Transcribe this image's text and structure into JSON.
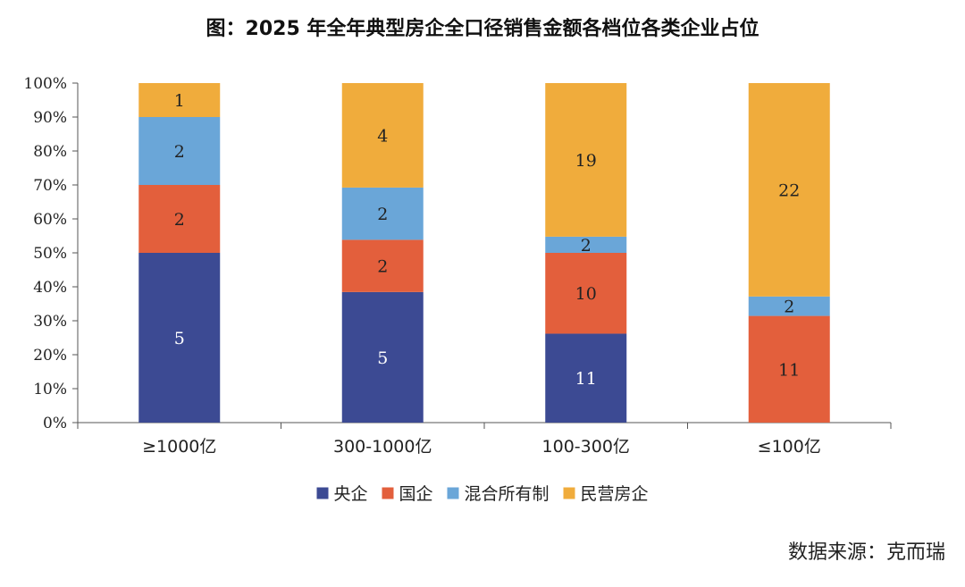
{
  "chart_data": {
    "type": "bar",
    "stacked": true,
    "normalized": true,
    "title": "图：2025 年全年典型房企全口径销售金额各档位各类企业占位",
    "categories": [
      "≥1000亿",
      "300-1000亿",
      "100-300亿",
      "≤100亿"
    ],
    "series": [
      {
        "name": "央企",
        "color": "#3c4a93",
        "label_color": "#ffffff",
        "values": [
          5,
          5,
          11,
          0
        ]
      },
      {
        "name": "国企",
        "color": "#e35f3c",
        "label_color": "#222222",
        "values": [
          2,
          2,
          10,
          11
        ]
      },
      {
        "name": "混合所有制",
        "color": "#6aa6d8",
        "label_color": "#222222",
        "values": [
          2,
          2,
          2,
          2
        ]
      },
      {
        "name": "民营房企",
        "color": "#f0ac3c",
        "label_color": "#222222",
        "values": [
          1,
          4,
          19,
          22
        ]
      }
    ],
    "y_ticks": [
      "0%",
      "10%",
      "20%",
      "30%",
      "40%",
      "50%",
      "60%",
      "70%",
      "80%",
      "90%",
      "100%"
    ],
    "ylim": [
      0,
      100
    ],
    "xlabel": "",
    "ylabel": "",
    "legend_position": "bottom-center"
  },
  "source": "数据来源：克而瑞"
}
